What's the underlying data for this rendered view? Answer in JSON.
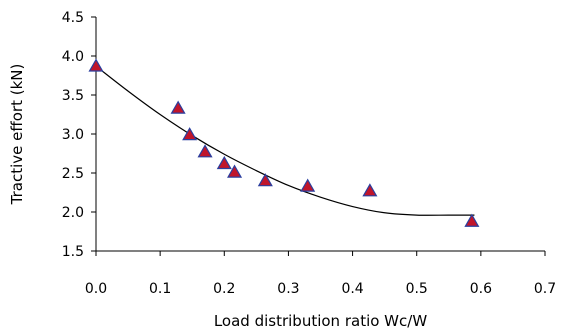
{
  "chart_data": {
    "type": "scatter",
    "title": "",
    "xlabel": "Load distribution ratio Wc/W",
    "ylabel": "Tractive effort (kN)",
    "xlim": [
      0.0,
      0.7
    ],
    "ylim": [
      1.5,
      4.5
    ],
    "xticks": [
      "0.0",
      "0.1",
      "0.2",
      "0.3",
      "0.4",
      "0.5",
      "0.6",
      "0.7"
    ],
    "yticks": [
      "1.5",
      "2.0",
      "2.5",
      "3.0",
      "3.5",
      "4.0",
      "4.5"
    ],
    "grid": false,
    "legend": "none",
    "marker": {
      "shape": "triangle",
      "fill": "#c0152b",
      "edge": "#2a3f9f"
    },
    "line_color": "#000000",
    "series": [
      {
        "type": "scatter",
        "x": [
          0.0,
          0.128,
          0.146,
          0.17,
          0.2,
          0.216,
          0.264,
          0.33,
          0.427,
          0.586
        ],
        "y": [
          3.87,
          3.33,
          2.99,
          2.77,
          2.62,
          2.51,
          2.4,
          2.33,
          2.27,
          1.88
        ]
      },
      {
        "type": "line",
        "x": [
          0.0,
          0.05,
          0.1,
          0.15,
          0.2,
          0.25,
          0.3,
          0.35,
          0.4,
          0.45,
          0.5,
          0.55,
          0.59
        ],
        "y": [
          3.87,
          3.55,
          3.25,
          2.98,
          2.74,
          2.53,
          2.34,
          2.19,
          2.07,
          1.99,
          1.96,
          1.96,
          1.96
        ]
      }
    ]
  }
}
